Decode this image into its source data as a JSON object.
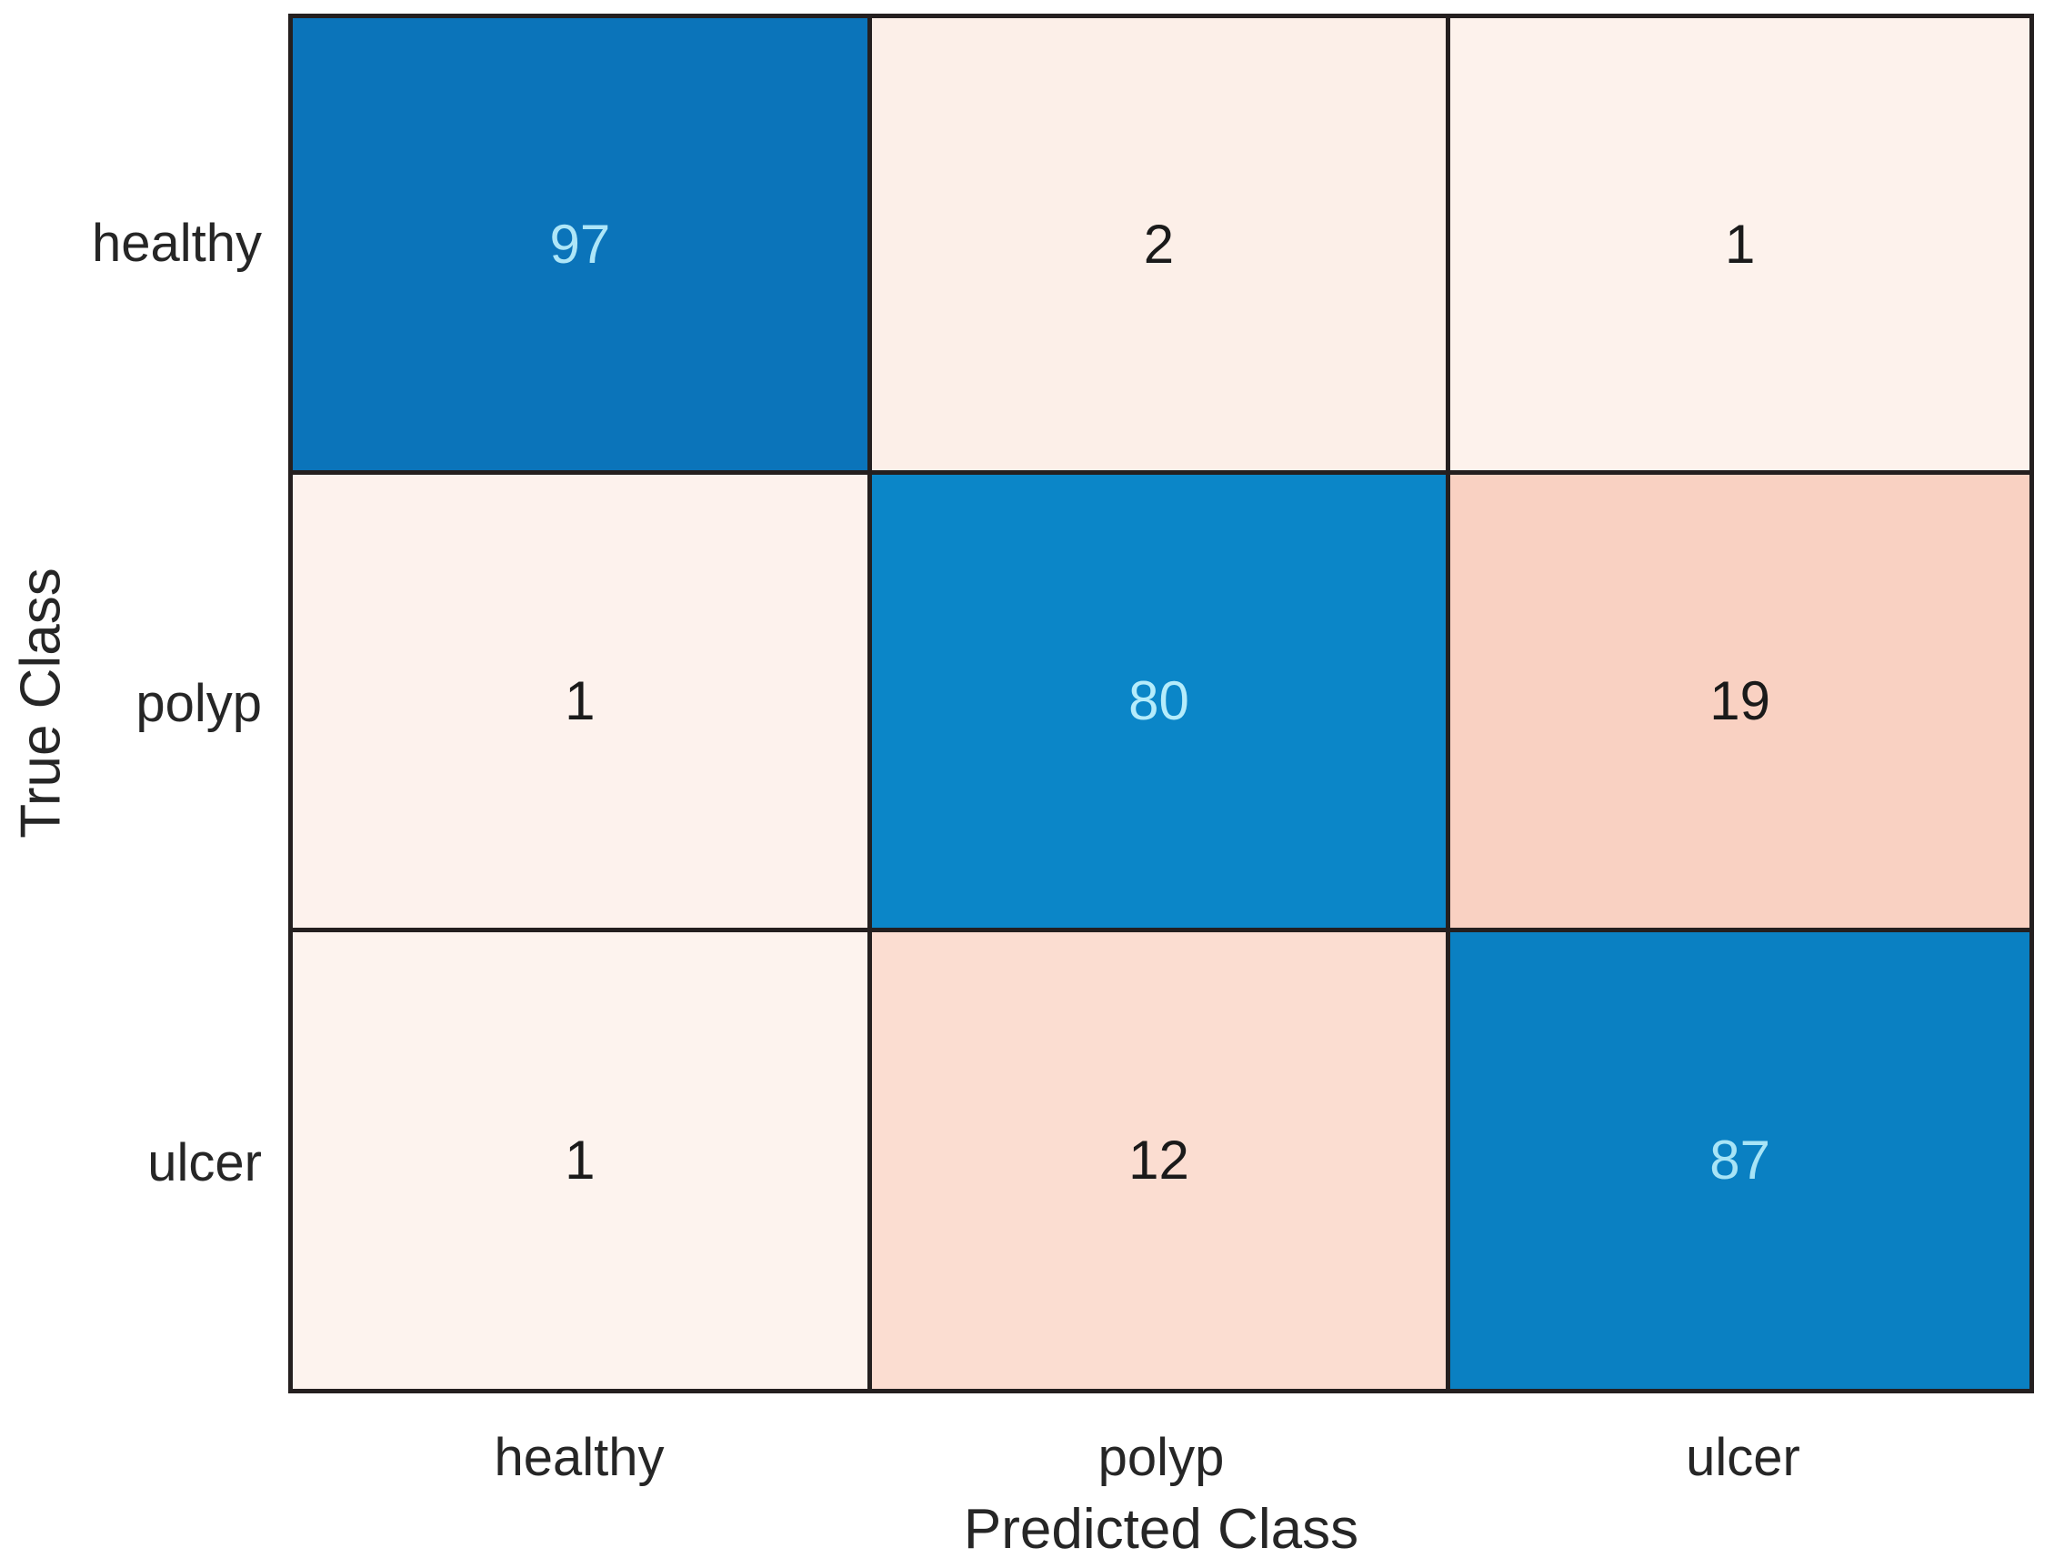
{
  "chart_data": {
    "type": "heatmap",
    "subtype": "confusion_matrix",
    "title": "",
    "xlabel": "Predicted Class",
    "ylabel": "True Class",
    "classes": [
      "healthy",
      "polyp",
      "ulcer"
    ],
    "x_tick_labels": [
      "healthy",
      "polyp",
      "ulcer"
    ],
    "y_tick_labels": [
      "healthy",
      "polyp",
      "ulcer"
    ],
    "matrix": [
      [
        97,
        2,
        1
      ],
      [
        1,
        80,
        19
      ],
      [
        1,
        12,
        87
      ]
    ],
    "cell_bg": [
      [
        "#0b74ba",
        "#fcefe8",
        "#fdf2ec"
      ],
      [
        "#fdf2ed",
        "#0b86c8",
        "#f9d1c2"
      ],
      [
        "#fdf3ee",
        "#fbddd1",
        "#0a80c2"
      ]
    ],
    "cell_fg": [
      [
        "#aee6f8",
        "#1a1a1a",
        "#1a1a1a"
      ],
      [
        "#1a1a1a",
        "#b5ecfb",
        "#1a1a1a"
      ],
      [
        "#1a1a1a",
        "#1a1a1a",
        "#a8e4f6"
      ]
    ],
    "colors": {
      "diagonal_fill_max": "#0b74ba",
      "off_diagonal_fill_max": "#f9d1c2",
      "grid_line": "#241f1f",
      "label_text": "#262626",
      "background": "#ffffff"
    },
    "legend": "none",
    "grid": "on",
    "axes_box": "on"
  }
}
